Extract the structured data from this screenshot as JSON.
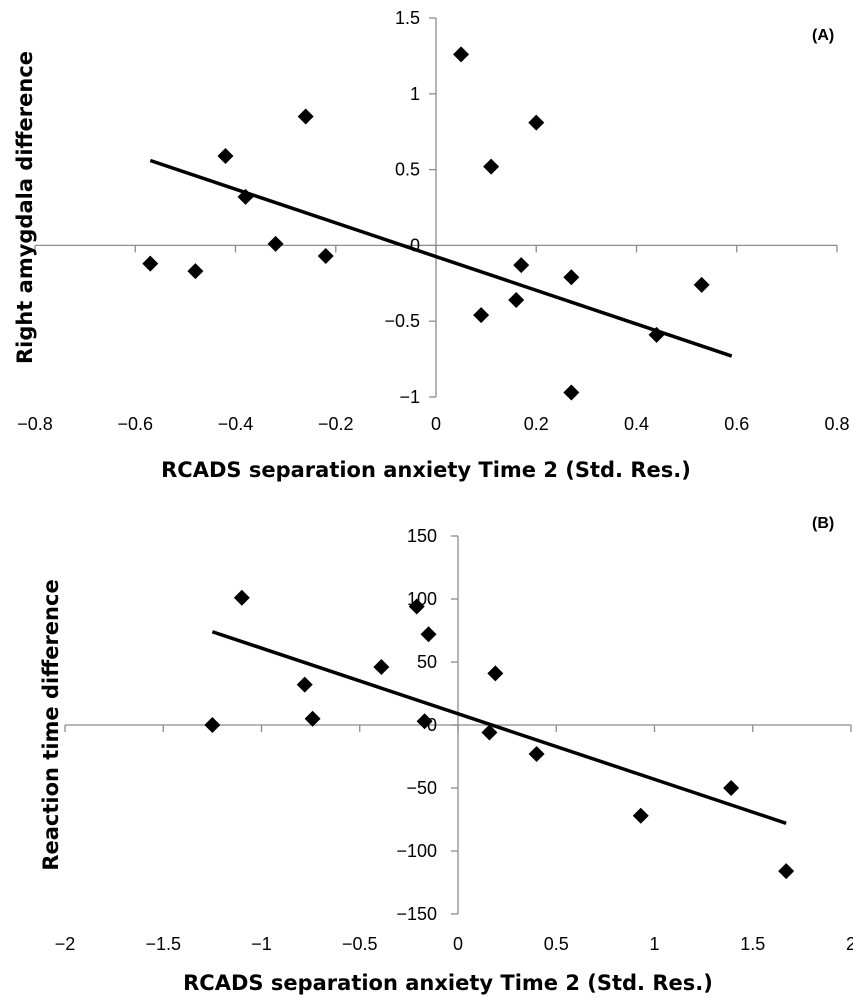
{
  "chart_data": [
    {
      "type": "scatter",
      "panel_label": "(A)",
      "title": "",
      "xlabel": "RCADS separation anxiety Time 2 (Std. Res.)",
      "ylabel": "Right amygdala difference",
      "xlim": [
        -0.8,
        0.8
      ],
      "ylim": [
        -1,
        1.5
      ],
      "x_ticks": [
        "−0.8",
        "−0.6",
        "−0.4",
        "−0.2",
        "0",
        "0.2",
        "0.4",
        "0.6",
        "0.8"
      ],
      "x_tick_values": [
        -0.8,
        -0.6,
        -0.4,
        -0.2,
        0,
        0.2,
        0.4,
        0.6,
        0.8
      ],
      "y_ticks": [
        "1.5",
        "1",
        "0.5",
        "0",
        "−0.5",
        "−1"
      ],
      "y_tick_values": [
        1.5,
        1,
        0.5,
        0,
        -0.5,
        -1
      ],
      "points": {
        "x": [
          -0.57,
          -0.48,
          -0.42,
          -0.38,
          -0.32,
          -0.26,
          -0.22,
          0.05,
          0.09,
          0.11,
          0.16,
          0.17,
          0.2,
          0.27,
          0.27,
          0.44,
          0.53
        ],
        "y": [
          -0.12,
          -0.17,
          0.59,
          0.32,
          0.01,
          0.85,
          -0.07,
          1.26,
          -0.46,
          0.52,
          -0.36,
          -0.13,
          0.81,
          -0.21,
          -0.97,
          -0.59,
          -0.26
        ]
      },
      "trendline": {
        "x": [
          -0.57,
          0.59
        ],
        "y": [
          0.56,
          -0.73
        ]
      },
      "grid": false,
      "legend": "none"
    },
    {
      "type": "scatter",
      "panel_label": "(B)",
      "title": "",
      "xlabel": "RCADS separation anxiety Time 2 (Std. Res.)",
      "ylabel": "Reaction time difference",
      "xlim": [
        -2,
        2
      ],
      "ylim": [
        -150,
        150
      ],
      "x_ticks": [
        "−2",
        "−1.5",
        "−1",
        "−0.5",
        "0",
        "0.5",
        "1",
        "1.5",
        "2"
      ],
      "x_tick_values": [
        -2,
        -1.5,
        -1,
        -0.5,
        0,
        0.5,
        1,
        1.5,
        2
      ],
      "y_ticks": [
        "150",
        "100",
        "50",
        "0",
        "−50",
        "−100",
        "−150"
      ],
      "y_tick_values": [
        150,
        100,
        50,
        0,
        -50,
        -100,
        -150
      ],
      "points": {
        "x": [
          -1.25,
          -1.1,
          -0.78,
          -0.74,
          -0.39,
          -0.21,
          -0.17,
          -0.15,
          0.16,
          0.19,
          0.4,
          0.93,
          1.39,
          1.67
        ],
        "y": [
          0,
          101,
          32,
          5,
          46,
          94,
          3,
          72,
          -6,
          41,
          -23,
          -72,
          -50,
          -116
        ]
      },
      "trendline": {
        "x": [
          -1.25,
          1.67
        ],
        "y": [
          74,
          -78
        ]
      },
      "grid": false,
      "legend": "none"
    }
  ]
}
